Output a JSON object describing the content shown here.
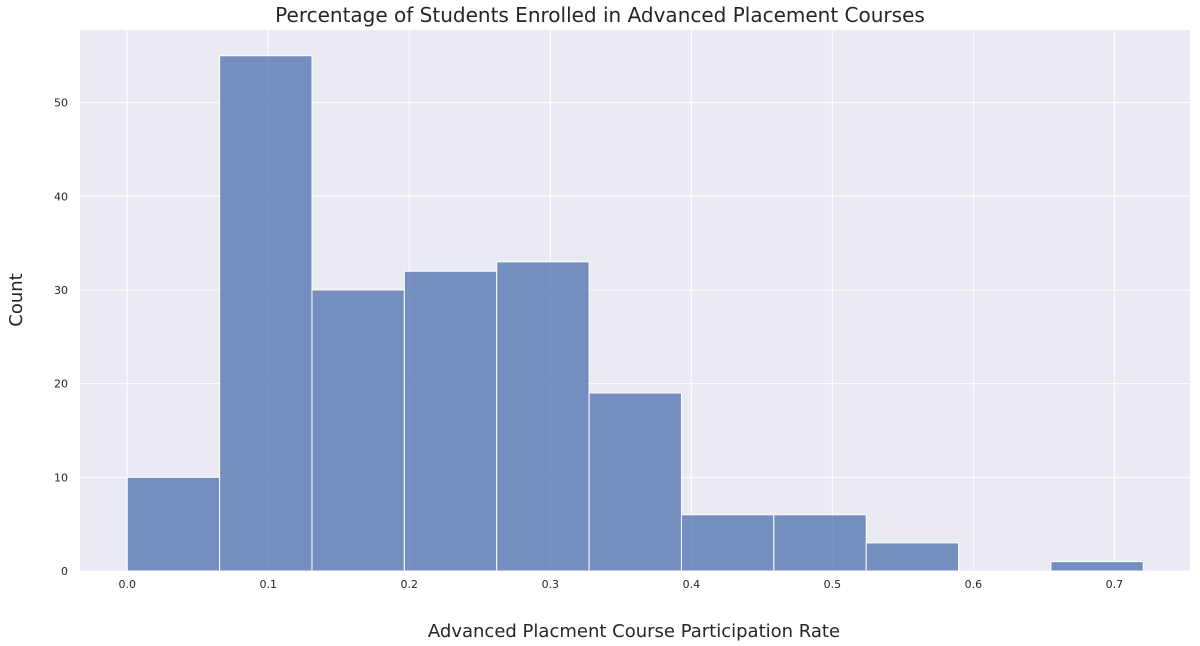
{
  "chart_data": {
    "type": "bar",
    "title": "Percentage of Students Enrolled in Advanced Placement Courses",
    "xlabel": "Advanced Placment Course Participation Rate",
    "ylabel": "Count",
    "xlim": [
      -0.0335,
      0.7536
    ],
    "ylim": [
      0,
      57.75
    ],
    "x_ticks": [
      "0.0",
      "0.1",
      "0.2",
      "0.3",
      "0.4",
      "0.5",
      "0.6",
      "0.7"
    ],
    "y_ticks": [
      "0",
      "10",
      "20",
      "30",
      "40",
      "50"
    ],
    "bins": [
      {
        "x0": 0.0,
        "x1": 0.0655,
        "count": 10
      },
      {
        "x0": 0.0655,
        "x1": 0.131,
        "count": 55
      },
      {
        "x0": 0.131,
        "x1": 0.1965,
        "count": 30
      },
      {
        "x0": 0.1965,
        "x1": 0.262,
        "count": 32
      },
      {
        "x0": 0.262,
        "x1": 0.3275,
        "count": 33
      },
      {
        "x0": 0.3275,
        "x1": 0.393,
        "count": 19
      },
      {
        "x0": 0.393,
        "x1": 0.4585,
        "count": 6
      },
      {
        "x0": 0.4585,
        "x1": 0.524,
        "count": 6
      },
      {
        "x0": 0.524,
        "x1": 0.5895,
        "count": 3
      },
      {
        "x0": 0.5895,
        "x1": 0.655,
        "count": 0
      },
      {
        "x0": 0.655,
        "x1": 0.7205,
        "count": 1
      }
    ],
    "grid": true,
    "colors": {
      "background": "#eaeaf2",
      "bar": "#5a7ab5",
      "grid": "#ffffff"
    }
  }
}
